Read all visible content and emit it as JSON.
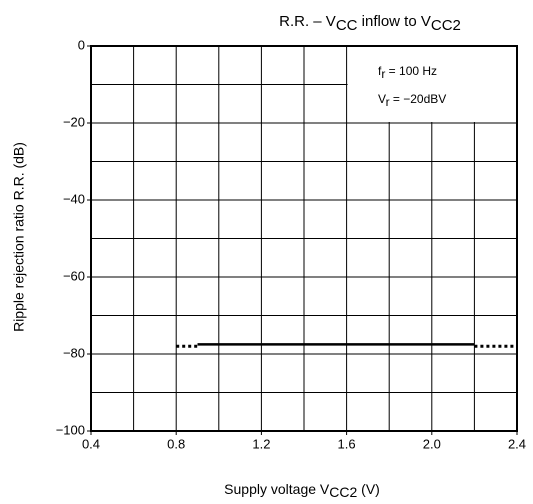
{
  "chart_data": {
    "type": "line",
    "title": [
      {
        "text": "R.R. – V"
      },
      {
        "text": "CC",
        "sub": true
      },
      {
        "text": "    inflow to V"
      },
      {
        "text": "CC2",
        "sub": true
      }
    ],
    "xlabel": [
      {
        "text": "Supply voltage   V"
      },
      {
        "text": "CC2",
        "sub": true
      },
      {
        "text": "   (V)"
      }
    ],
    "ylabel": "Ripple rejection ratio    R.R.    (dB)",
    "annotations": [
      [
        {
          "text": "f"
        },
        {
          "text": "r",
          "sub": true
        },
        {
          "text": " = 100 Hz"
        }
      ],
      [
        {
          "text": "V"
        },
        {
          "text": "r",
          "sub": true
        },
        {
          "text": " = −20dBV"
        }
      ]
    ],
    "xlim": [
      0.4,
      2.4
    ],
    "ylim": [
      -100,
      0
    ],
    "xticks": [
      0.4,
      0.8,
      1.2,
      1.6,
      {
        "value": 2,
        "label": "2.0"
      },
      2.4
    ],
    "yticks": [
      0,
      {
        "value": -20,
        "label": "−20"
      },
      {
        "value": -40,
        "label": "−40"
      },
      {
        "value": -60,
        "label": "−60"
      },
      {
        "value": -80,
        "label": "−80"
      },
      {
        "value": -100,
        "label": "−100"
      }
    ],
    "xgrid": [
      0.6,
      0.8,
      1.0,
      1.2,
      1.4,
      1.6,
      1.8,
      2.0,
      2.2
    ],
    "ygrid": [
      -10,
      -20,
      -30,
      -40,
      -50,
      -60,
      -70,
      -80,
      -90
    ],
    "grid": true,
    "series": [
      {
        "color": "#000000",
        "style": "solid",
        "x": [
          0.9,
          2.2
        ],
        "values": [
          -77.5,
          -77.5
        ]
      },
      {
        "color": "#000000",
        "style": "dotted",
        "x": [
          0.8,
          0.9
        ],
        "values": [
          -78,
          -78
        ]
      },
      {
        "color": "#000000",
        "style": "dotted",
        "x": [
          2.2,
          2.4
        ],
        "values": [
          -78,
          -78
        ]
      }
    ]
  }
}
